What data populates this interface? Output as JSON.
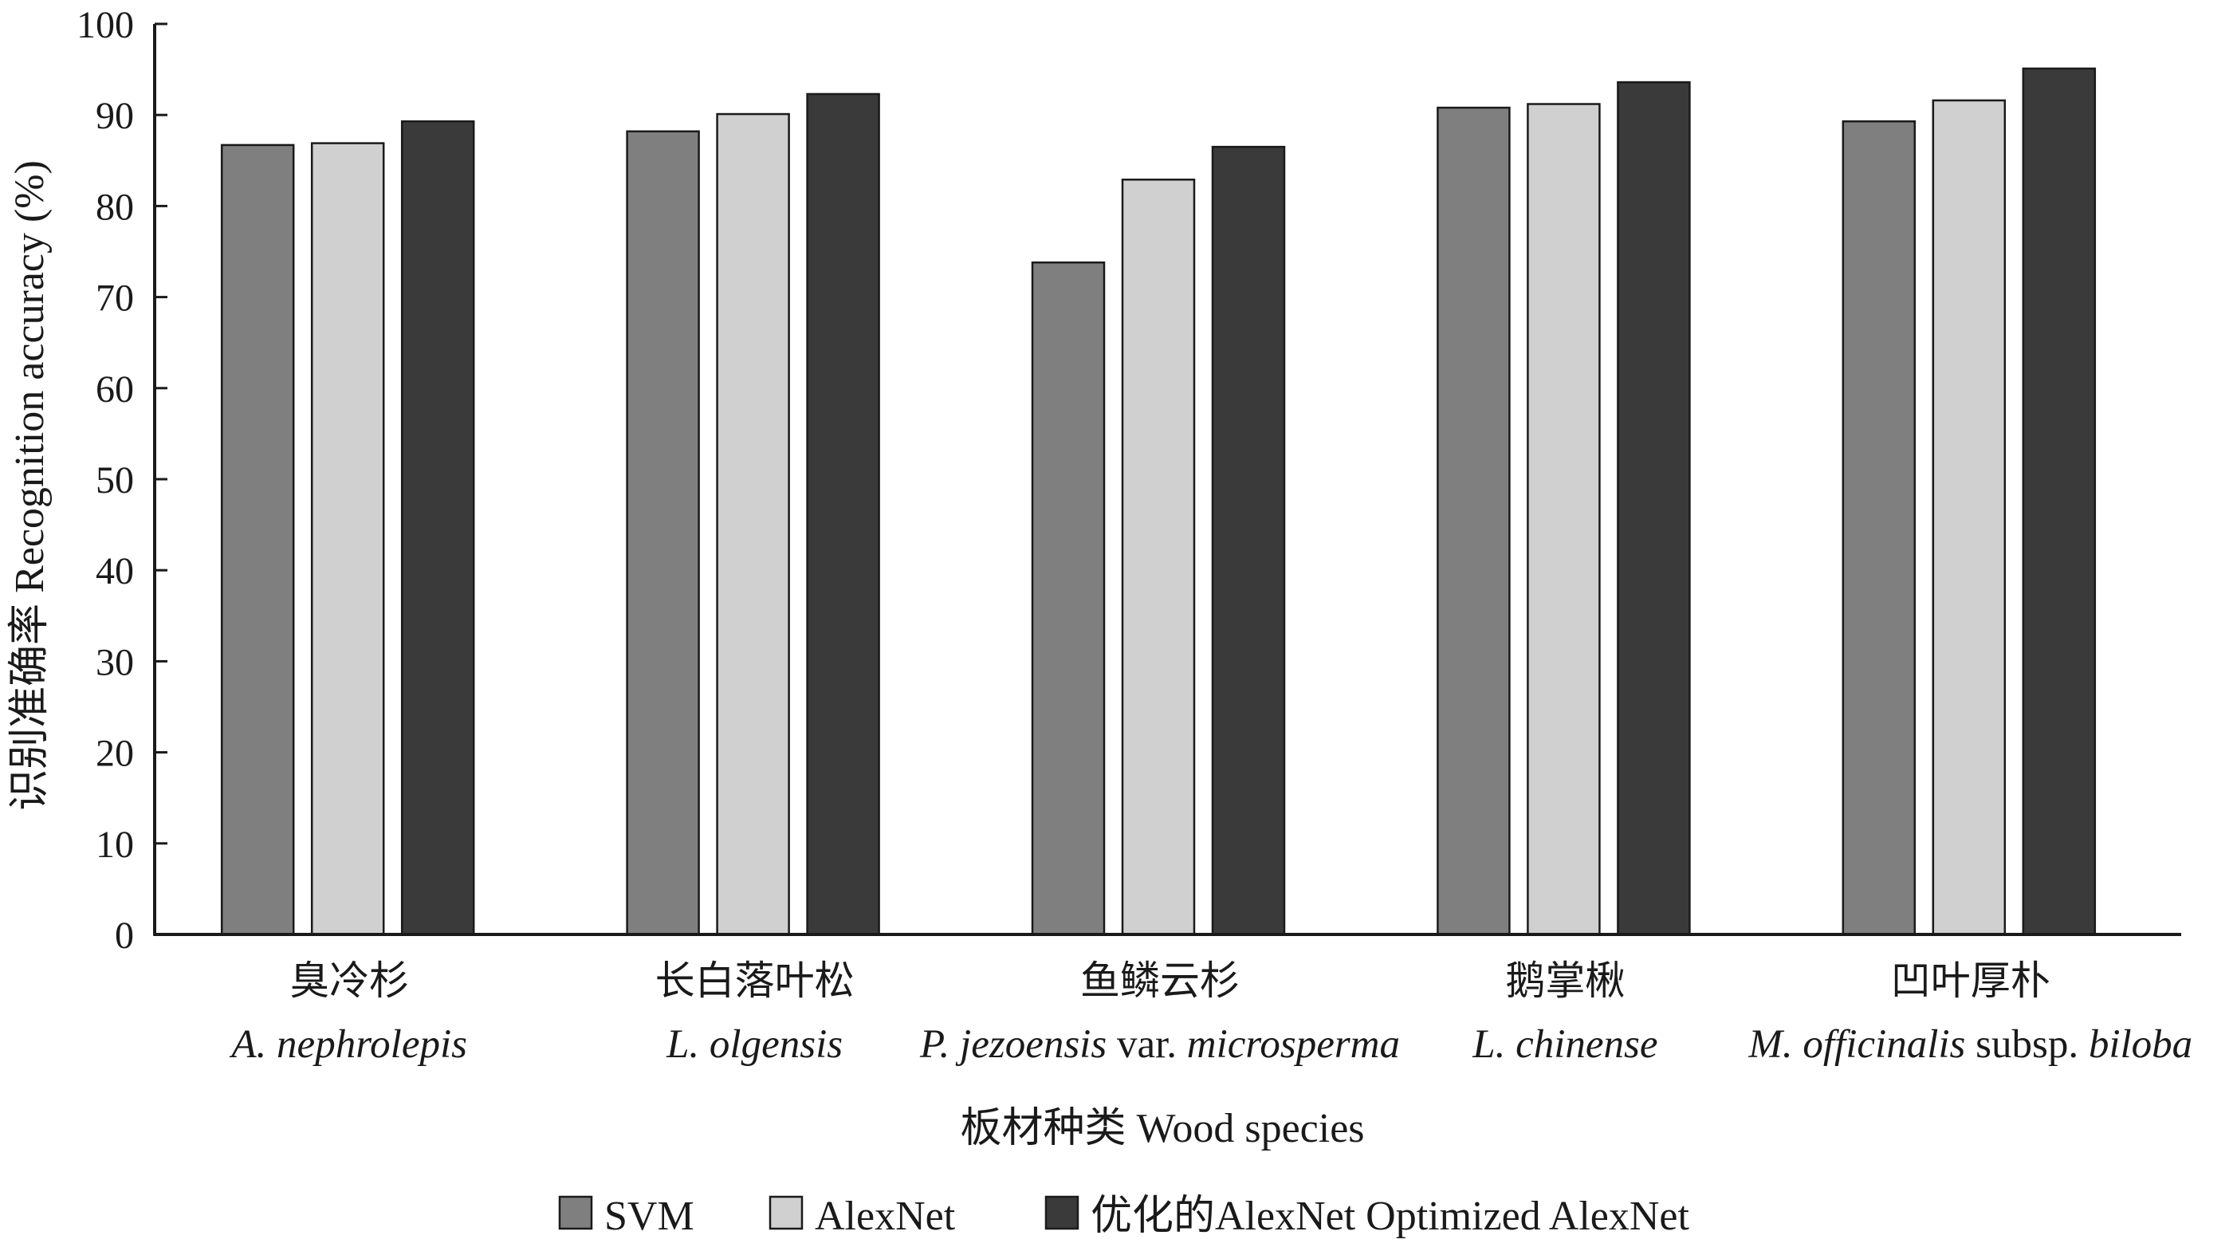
{
  "chart_data": {
    "type": "bar",
    "ylabel": "识别准确率  Recognition accuracy (%)",
    "xlabel": "板材种类  Wood species",
    "ylim": [
      0,
      100
    ],
    "yticks": [
      0,
      10,
      20,
      30,
      40,
      50,
      60,
      70,
      80,
      90,
      100
    ],
    "grid": false,
    "legend_position": "bottom",
    "categories": [
      {
        "cn": "臭冷杉",
        "latin": [
          {
            "text": "A. nephrolepis",
            "italic": true
          }
        ]
      },
      {
        "cn": "长白落叶松",
        "latin": [
          {
            "text": "L. olgensis",
            "italic": true
          }
        ]
      },
      {
        "cn": "鱼鳞云杉",
        "latin": [
          {
            "text": "P. jezoensis",
            "italic": true
          },
          {
            "text": " var. ",
            "italic": false
          },
          {
            "text": "microsperma",
            "italic": true
          }
        ]
      },
      {
        "cn": "鹅掌楸",
        "latin": [
          {
            "text": "L. chinense",
            "italic": true
          }
        ]
      },
      {
        "cn": "凹叶厚朴",
        "latin": [
          {
            "text": "M. officinalis",
            "italic": true
          },
          {
            "text": " subsp. ",
            "italic": false
          },
          {
            "text": "biloba",
            "italic": true
          }
        ]
      }
    ],
    "series": [
      {
        "name": "SVM",
        "color": "#7f7f7f",
        "values": [
          86.7,
          88.2,
          73.8,
          90.8,
          89.3
        ]
      },
      {
        "name": "AlexNet",
        "color": "#d0d0d0",
        "values": [
          86.9,
          90.1,
          82.9,
          91.2,
          91.6
        ]
      },
      {
        "name": "优化的AlexNet  Optimized AlexNet",
        "color": "#3a3a3a",
        "values": [
          89.3,
          92.3,
          86.5,
          93.6,
          95.1
        ]
      }
    ]
  }
}
